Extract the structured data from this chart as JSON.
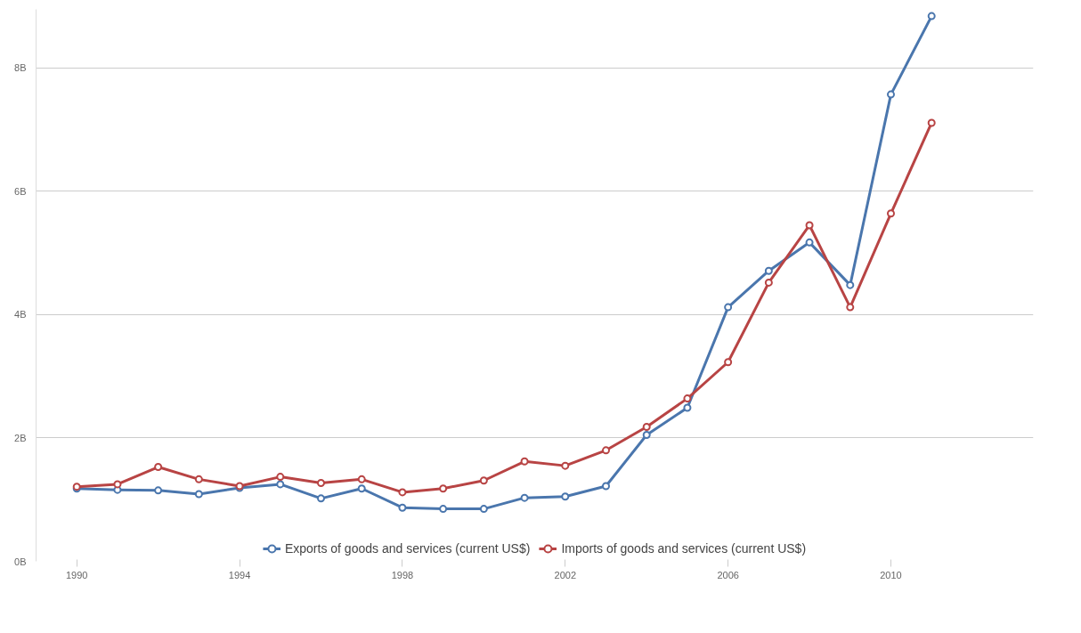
{
  "chart_data": {
    "type": "line",
    "x": [
      1990,
      1991,
      1992,
      1993,
      1994,
      1995,
      1996,
      1997,
      1998,
      1999,
      2000,
      2001,
      2002,
      2003,
      2004,
      2005,
      2006,
      2007,
      2008,
      2009,
      2010,
      2011
    ],
    "series": [
      {
        "name": "Exports of goods and services (current US$)",
        "color": "#4a76ad",
        "values": [
          1.18,
          1.16,
          1.15,
          1.09,
          1.19,
          1.25,
          1.02,
          1.18,
          0.87,
          0.85,
          0.85,
          1.03,
          1.05,
          1.22,
          2.05,
          2.49,
          4.12,
          4.71,
          5.17,
          4.48,
          7.57,
          8.84
        ]
      },
      {
        "name": "Imports of goods and services (current US$)",
        "color": "#b84444",
        "values": [
          1.21,
          1.25,
          1.53,
          1.33,
          1.22,
          1.37,
          1.27,
          1.33,
          1.12,
          1.18,
          1.31,
          1.62,
          1.55,
          1.8,
          2.18,
          2.64,
          3.23,
          4.52,
          5.45,
          4.12,
          5.64,
          7.11
        ]
      }
    ],
    "xlim": [
      1989,
      2013.5
    ],
    "xticks": [
      1990,
      1994,
      1998,
      2002,
      2006,
      2010
    ],
    "ylim": [
      0,
      8.95
    ],
    "yticks": [
      {
        "value": 0,
        "label": "0B"
      },
      {
        "value": 2,
        "label": "2B"
      },
      {
        "value": 4,
        "label": "4B"
      },
      {
        "value": 6,
        "label": "6B"
      },
      {
        "value": 8,
        "label": "8B"
      }
    ],
    "grid": "y",
    "legend": "bottom",
    "marker": "circle",
    "line_style": "solid"
  }
}
